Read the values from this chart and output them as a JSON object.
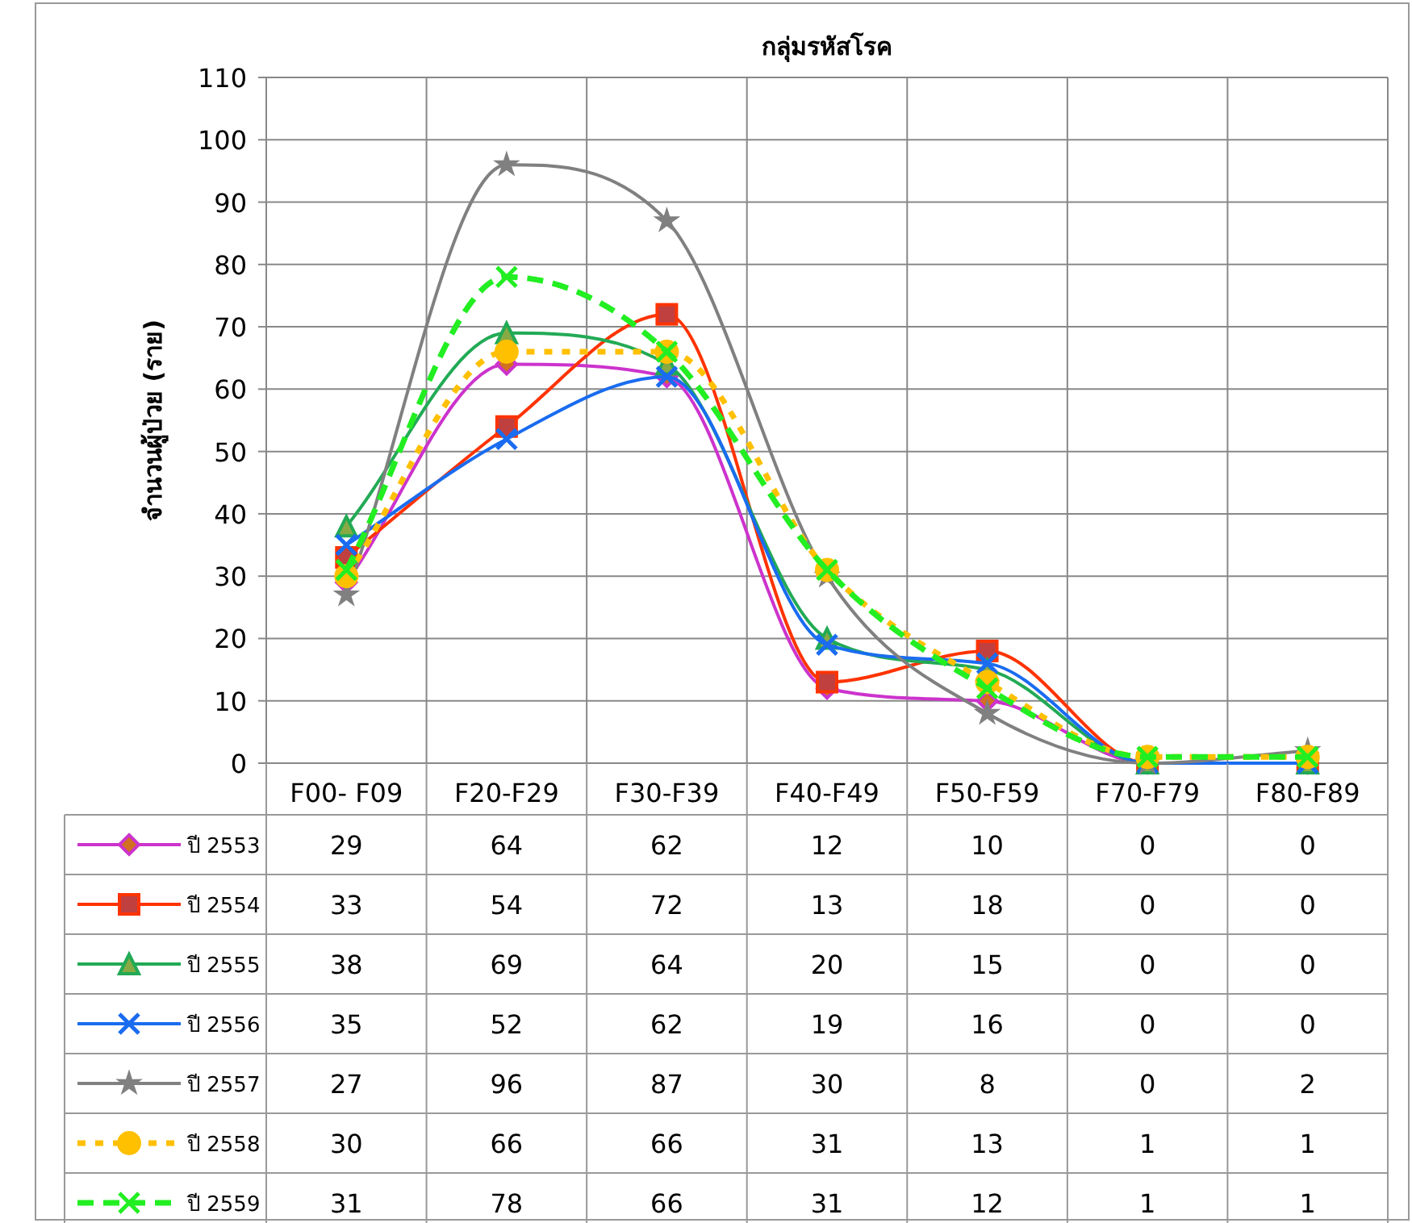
{
  "chart_data": {
    "type": "line",
    "title": "กลุ่มรหัสโรค",
    "ylabel": "จำนวนผู้ป่วย (ราย)",
    "categories": [
      "F00- F09",
      "F20-F29",
      "F30-F39",
      "F40-F49",
      "F50-F59",
      "F70-F79",
      "F80-F89"
    ],
    "ylim": [
      0,
      110
    ],
    "yticks": [
      0,
      10,
      20,
      30,
      40,
      50,
      60,
      70,
      80,
      90,
      100,
      110
    ],
    "grid": true,
    "legend": "bottom",
    "data_labels": true,
    "series": [
      {
        "name": "ปี 2553",
        "color": "#cc33cc",
        "marker": "diamond",
        "line_style": "solid",
        "values": [
          29,
          64,
          62,
          12,
          10,
          0,
          0
        ]
      },
      {
        "name": "ปี 2554",
        "color": "#ff3300",
        "marker": "square",
        "line_style": "solid",
        "values": [
          33,
          54,
          72,
          13,
          18,
          0,
          0
        ]
      },
      {
        "name": "ปี 2555",
        "color": "#22aa55",
        "marker": "triangle",
        "line_style": "solid",
        "values": [
          38,
          69,
          64,
          20,
          15,
          0,
          0
        ]
      },
      {
        "name": "ปี 2556",
        "color": "#1a6cf0",
        "marker": "cross",
        "line_style": "solid",
        "values": [
          35,
          52,
          62,
          19,
          16,
          0,
          0
        ]
      },
      {
        "name": "ปี 2557",
        "color": "#808080",
        "marker": "star",
        "line_style": "solid",
        "values": [
          27,
          96,
          87,
          30,
          8,
          0,
          2
        ]
      },
      {
        "name": "ปี 2558",
        "color": "#ffc000",
        "marker": "circle",
        "line_style": "dotted",
        "values": [
          30,
          66,
          66,
          31,
          13,
          1,
          1
        ]
      },
      {
        "name": "ปี 2559",
        "color": "#22ee22",
        "marker": "cross",
        "line_style": "dashed",
        "values": [
          31,
          78,
          66,
          31,
          12,
          1,
          1
        ]
      }
    ]
  }
}
